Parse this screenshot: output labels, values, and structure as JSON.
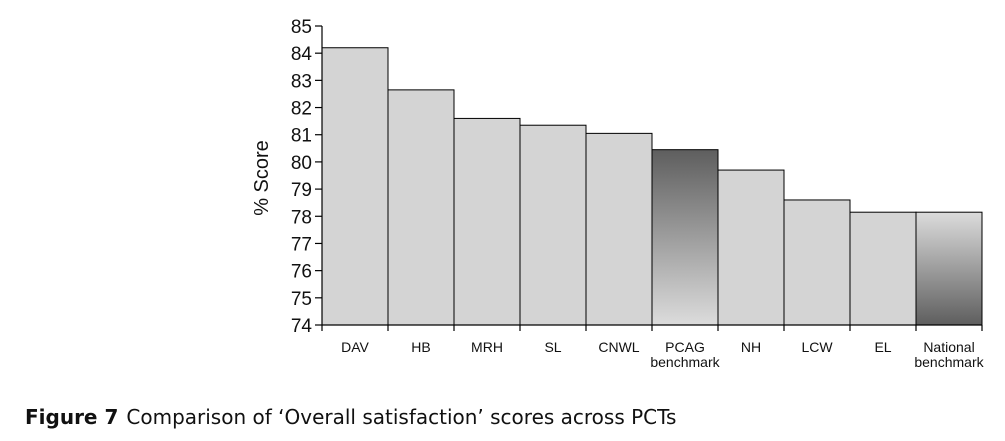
{
  "chart_data": {
    "type": "bar",
    "title": "",
    "xlabel": "",
    "ylabel": "% Score",
    "ylim": [
      74,
      85
    ],
    "yticks": [
      "74",
      "75",
      "76",
      "77",
      "78",
      "79",
      "80",
      "81",
      "82",
      "83",
      "84",
      "85"
    ],
    "grid": false,
    "categories": [
      {
        "lines": [
          "DAV"
        ]
      },
      {
        "lines": [
          "HB"
        ]
      },
      {
        "lines": [
          "MRH"
        ]
      },
      {
        "lines": [
          "SL"
        ]
      },
      {
        "lines": [
          "CNWL"
        ]
      },
      {
        "lines": [
          "PCAG",
          "benchmark"
        ]
      },
      {
        "lines": [
          "NH"
        ]
      },
      {
        "lines": [
          "LCW"
        ]
      },
      {
        "lines": [
          "EL"
        ]
      },
      {
        "lines": [
          "National",
          "benchmark"
        ]
      }
    ],
    "values": [
      84.2,
      82.65,
      81.6,
      81.35,
      81.05,
      80.45,
      79.7,
      78.6,
      78.15,
      78.15
    ],
    "styles": [
      "plain",
      "plain",
      "plain",
      "plain",
      "plain",
      "gradient-down",
      "plain",
      "plain",
      "plain",
      "gradient-up"
    ],
    "colors": {
      "bar_fill": "#d4d4d4",
      "bar_stroke": "#000000",
      "gradient_dark": "#5e5e5e",
      "gradient_light": "#dcdcdc"
    }
  },
  "caption": {
    "figure_number": "Figure 7",
    "text": "Comparison of ‘Overall satisfaction’ scores across PCTs"
  }
}
